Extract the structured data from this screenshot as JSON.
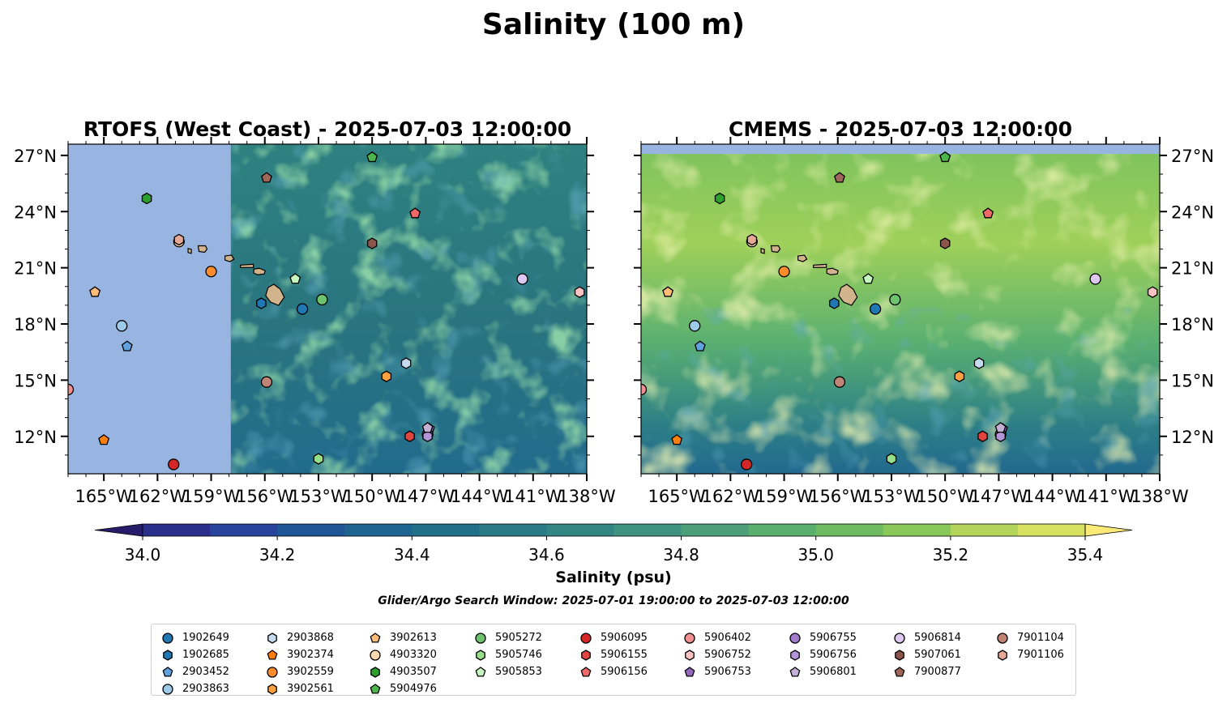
{
  "figure": {
    "suptitle": "Salinity (100 m)",
    "panels": [
      {
        "title": "RTOFS (West Coast) - 2025-07-03 12:00:00",
        "model": "rtofs"
      },
      {
        "title": "CMEMS - 2025-07-03 12:00:00",
        "model": "cmems"
      }
    ],
    "x_tick_labels": [
      "165°W",
      "162°W",
      "159°W",
      "156°W",
      "153°W",
      "150°W",
      "147°W",
      "144°W",
      "141°W",
      "138°W"
    ],
    "y_tick_labels": [
      "12°N",
      "15°N",
      "18°N",
      "21°N",
      "24°N",
      "27°N"
    ],
    "colorbar": {
      "label": "Salinity (psu)",
      "tick_labels": [
        "34.0",
        "34.2",
        "34.4",
        "34.6",
        "34.8",
        "35.0",
        "35.2",
        "35.4"
      ]
    },
    "search_window": "Glider/Argo Search Window: 2025-07-01 19:00:00 to 2025-07-03 12:00:00",
    "colors": {
      "land": "#d2b48c",
      "no_data": "#98b4e0"
    }
  },
  "chart_data": {
    "type": "map",
    "variable": "Salinity",
    "units": "psu",
    "depth_m": 100,
    "xlim": [
      -167,
      -138
    ],
    "ylim": [
      10,
      27.6
    ],
    "rtofs_coverage_lon_min": -157.9,
    "color_levels": [
      34.0,
      34.1,
      34.2,
      34.3,
      34.4,
      34.5,
      34.6,
      34.7,
      34.8,
      34.9,
      35.0,
      35.1,
      35.2,
      35.3,
      35.4
    ],
    "level_colors": [
      "#261c6a",
      "#2b2f8c",
      "#28449a",
      "#1f5696",
      "#1e6490",
      "#226f8a",
      "#2a7b86",
      "#338583",
      "#3f9280",
      "#4c9f79",
      "#5aae6e",
      "#6fbb62",
      "#8ac85a",
      "#b3d459",
      "#d6e162",
      "#fbe978"
    ],
    "ocean_bands": {
      "rtofs": [
        [
          "#2f8180",
          0.0
        ],
        [
          "#29747f",
          0.55
        ],
        [
          "#226b8c",
          1.0
        ]
      ],
      "cmems": [
        [
          "#7cc25e",
          0.0
        ],
        [
          "#9fd059",
          0.3
        ],
        [
          "#5ab071",
          0.6
        ],
        [
          "#2d7f86",
          0.85
        ],
        [
          "#22698f",
          1.0
        ]
      ]
    },
    "islands": [
      {
        "name": "Hawaii",
        "lon": -155.5,
        "lat": 19.6
      },
      {
        "name": "Maui",
        "lon": -156.3,
        "lat": 20.8
      },
      {
        "name": "Molokai",
        "lon": -157.0,
        "lat": 21.1
      },
      {
        "name": "Oahu",
        "lon": -158.0,
        "lat": 21.5
      },
      {
        "name": "Kauai",
        "lon": -159.5,
        "lat": 22.0
      },
      {
        "name": "Niihau",
        "lon": -160.2,
        "lat": 21.9
      }
    ],
    "floats": [
      {
        "id": "1902649",
        "marker": "circle",
        "color": "#1f77b4",
        "lon": -153.9,
        "lat": 18.8
      },
      {
        "id": "1902685",
        "marker": "hexagon",
        "color": "#1f77b4",
        "lon": -156.2,
        "lat": 19.1
      },
      {
        "id": "2903452",
        "marker": "pentagon",
        "color": "#5fa2dd",
        "lon": -163.7,
        "lat": 16.8
      },
      {
        "id": "2903863",
        "marker": "circle",
        "color": "#9ecae9",
        "lon": -164.0,
        "lat": 17.9
      },
      {
        "id": "2903868",
        "marker": "hexagon",
        "color": "#c6dbef",
        "lon": -148.1,
        "lat": 15.9
      },
      {
        "id": "3902374",
        "marker": "pentagon",
        "color": "#ff7f0e",
        "lon": -165.0,
        "lat": 11.8
      },
      {
        "id": "3902559",
        "marker": "circle",
        "color": "#ff8c2a",
        "lon": -159.0,
        "lat": 20.8
      },
      {
        "id": "3902561",
        "marker": "hexagon",
        "color": "#ffa040",
        "lon": -149.2,
        "lat": 15.2
      },
      {
        "id": "3902613",
        "marker": "pentagon",
        "color": "#ffbb78",
        "lon": -165.5,
        "lat": 19.7
      },
      {
        "id": "4903320",
        "marker": "circle",
        "color": "#ffd8b0",
        "lon": -160.8,
        "lat": 22.4
      },
      {
        "id": "4903507",
        "marker": "hexagon",
        "color": "#2ca02c",
        "lon": -162.6,
        "lat": 24.7
      },
      {
        "id": "5904976",
        "marker": "pentagon",
        "color": "#4cb54c",
        "lon": -150.0,
        "lat": 26.9
      },
      {
        "id": "5905272",
        "marker": "circle",
        "color": "#6ec36e",
        "lon": -152.8,
        "lat": 19.3
      },
      {
        "id": "5905746",
        "marker": "hexagon",
        "color": "#98df8a",
        "lon": -153.0,
        "lat": 10.8
      },
      {
        "id": "5905853",
        "marker": "pentagon",
        "color": "#c5f5c0",
        "lon": -154.3,
        "lat": 20.4
      },
      {
        "id": "5906095",
        "marker": "circle",
        "color": "#d62728",
        "lon": -161.1,
        "lat": 10.5
      },
      {
        "id": "5906155",
        "marker": "hexagon",
        "color": "#e0453f",
        "lon": -147.9,
        "lat": 12.0
      },
      {
        "id": "5906156",
        "marker": "pentagon",
        "color": "#f06868",
        "lon": -147.6,
        "lat": 23.9
      },
      {
        "id": "5906402",
        "marker": "circle",
        "color": "#f09090",
        "lon": -167.0,
        "lat": 14.5
      },
      {
        "id": "5906752",
        "marker": "hexagon",
        "color": "#ffc2c2",
        "lon": -138.4,
        "lat": 19.7
      },
      {
        "id": "5906753",
        "marker": "pentagon",
        "color": "#9467bd",
        "lon": -146.8,
        "lat": 12.4
      },
      {
        "id": "5906755",
        "marker": "circle",
        "color": "#a07ccb",
        "lon": -146.9,
        "lat": 12.1
      },
      {
        "id": "5906756",
        "marker": "hexagon",
        "color": "#b496d8",
        "lon": -146.9,
        "lat": 12.0
      },
      {
        "id": "5906801",
        "marker": "pentagon",
        "color": "#c5b0d5",
        "lon": -146.9,
        "lat": 12.45
      },
      {
        "id": "5906814",
        "marker": "circle",
        "color": "#dcc8f0",
        "lon": -141.6,
        "lat": 20.4
      },
      {
        "id": "5907061",
        "marker": "hexagon",
        "color": "#8c564b",
        "lon": -150.0,
        "lat": 22.3
      },
      {
        "id": "7900877",
        "marker": "pentagon",
        "color": "#a0665a",
        "lon": -155.9,
        "lat": 25.8
      },
      {
        "id": "7901104",
        "marker": "circle",
        "color": "#c08476",
        "lon": -155.9,
        "lat": 14.9
      },
      {
        "id": "7901106",
        "marker": "hexagon",
        "color": "#e8a898",
        "lon": -160.8,
        "lat": 22.5
      }
    ]
  }
}
